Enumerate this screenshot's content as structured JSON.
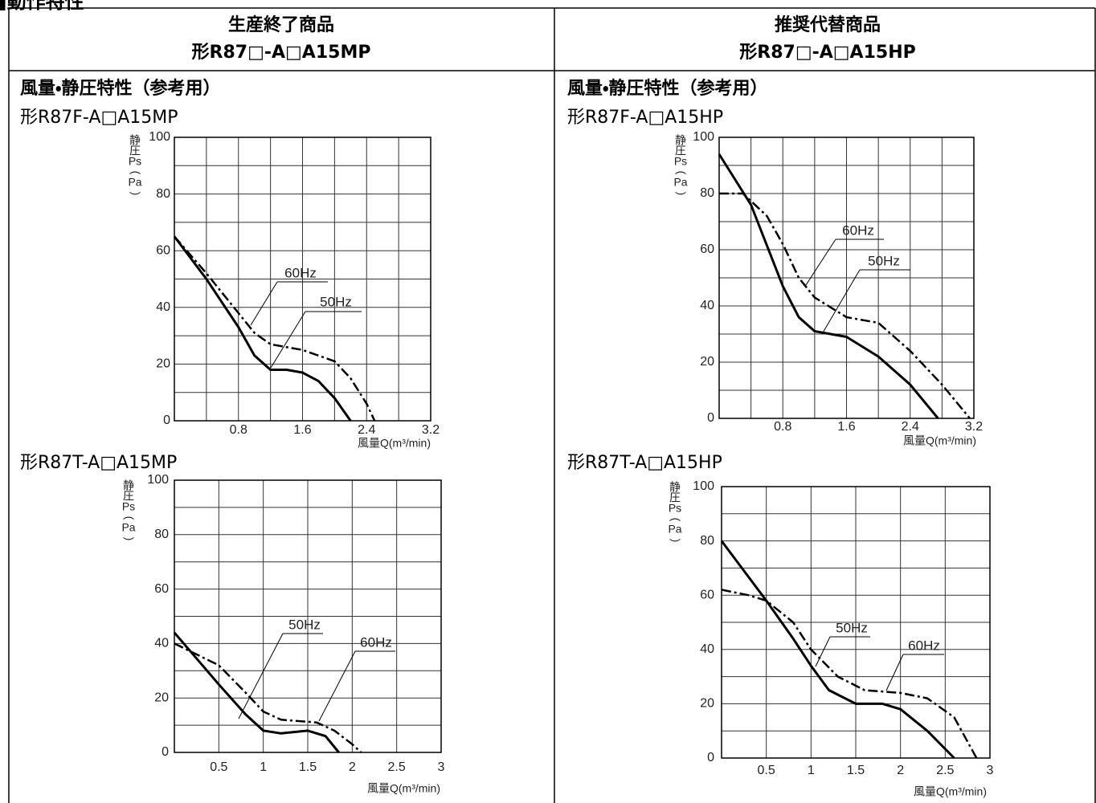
{
  "header": {
    "title": "■動作特性"
  },
  "table": {
    "columns": [
      {
        "status": "生産終了商品",
        "model": "形R87□-A□A15MP",
        "section_title": "風量・静圧特性（参考用）",
        "chart_titles": [
          "形R87F-A□A15MP",
          "形R87T-A□A15MP"
        ]
      },
      {
        "status": "推奨代替商品",
        "model": "形R87□-A□A15HP",
        "section_title": "風量・静圧特性（参考用）",
        "chart_titles": [
          "形R87F-A□A15HP",
          "形R87T-A□A15HP"
        ]
      }
    ]
  },
  "chart_data": [
    {
      "type": "line",
      "x_label": "風量Q(m³/min)",
      "y_label": [
        "静",
        "圧",
        "Ps",
        "(",
        "Pa",
        ")"
      ],
      "xlim": [
        0,
        3.2
      ],
      "ylim": [
        0,
        100
      ],
      "xticks": [
        0.8,
        1.6,
        2.4,
        3.2
      ],
      "yticks": [
        0,
        20,
        40,
        60,
        80,
        100
      ],
      "grid_x": [
        0.4,
        0.8,
        1.2,
        1.6,
        2.0,
        2.4,
        2.8
      ],
      "grid_y": [
        10,
        20,
        30,
        40,
        50,
        60,
        70,
        80,
        90
      ],
      "series": [
        {
          "name": "50Hz",
          "color": "#000000",
          "style": "solid",
          "x": [
            0,
            0.4,
            0.8,
            1.0,
            1.2,
            1.4,
            1.6,
            1.8,
            2.0,
            2.2
          ],
          "values": [
            65,
            50,
            33,
            23,
            18,
            18,
            17,
            14,
            8,
            0
          ]
        },
        {
          "name": "60Hz",
          "color": "#000000",
          "style": "dash-dot",
          "x": [
            0,
            0.4,
            0.8,
            1.0,
            1.2,
            1.6,
            2.0,
            2.2,
            2.4,
            2.5
          ],
          "values": [
            65,
            52,
            38,
            31,
            27,
            25,
            21,
            15,
            6,
            0
          ]
        }
      ]
    },
    {
      "type": "line",
      "x_label": "風量Q(m³/min)",
      "y_label": [
        "静",
        "圧",
        "Ps",
        "(",
        "Pa",
        ")"
      ],
      "xlim": [
        0,
        3.2
      ],
      "ylim": [
        0,
        100
      ],
      "xticks": [
        0.8,
        1.6,
        2.4,
        3.2
      ],
      "yticks": [
        0,
        20,
        40,
        60,
        80,
        100
      ],
      "grid_x": [
        0.4,
        0.8,
        1.2,
        1.6,
        2.0,
        2.4,
        2.8
      ],
      "grid_y": [
        10,
        20,
        30,
        40,
        50,
        60,
        70,
        80,
        90
      ],
      "series": [
        {
          "name": "50Hz",
          "color": "#000000",
          "style": "solid",
          "x": [
            0,
            0.4,
            0.8,
            1.0,
            1.2,
            1.6,
            2.0,
            2.4,
            2.75
          ],
          "values": [
            94,
            76,
            47,
            36,
            31,
            29,
            22,
            12,
            0
          ]
        },
        {
          "name": "60Hz",
          "color": "#000000",
          "style": "dash-dot",
          "x": [
            0,
            0.3,
            0.6,
            0.8,
            1.0,
            1.2,
            1.6,
            2.0,
            2.4,
            2.8,
            3.15
          ],
          "values": [
            80,
            80,
            72,
            62,
            50,
            43,
            36,
            34,
            24,
            12,
            0
          ]
        }
      ]
    },
    {
      "type": "line",
      "x_label": "風量Q(m³/min)",
      "y_label": [
        "静",
        "圧",
        "Ps",
        "(",
        "Pa",
        ")"
      ],
      "xlim": [
        0,
        3
      ],
      "ylim": [
        0,
        100
      ],
      "xticks": [
        0.5,
        1,
        1.5,
        2,
        2.5,
        3
      ],
      "yticks": [
        0,
        20,
        40,
        60,
        80,
        100
      ],
      "grid_x": [
        0.5,
        1,
        1.5,
        2,
        2.5
      ],
      "grid_y": [
        10,
        20,
        30,
        40,
        50,
        60,
        70,
        80,
        90
      ],
      "series": [
        {
          "name": "50Hz",
          "color": "#000000",
          "style": "solid",
          "x": [
            0,
            0.5,
            0.8,
            1.0,
            1.2,
            1.5,
            1.7,
            1.85
          ],
          "values": [
            44,
            25,
            14,
            8,
            7,
            8,
            6,
            0
          ]
        },
        {
          "name": "60Hz",
          "color": "#000000",
          "style": "dash-dot",
          "x": [
            0,
            0.5,
            0.8,
            1.0,
            1.2,
            1.6,
            1.8,
            2.0,
            2.1
          ],
          "values": [
            40,
            32,
            22,
            15,
            12,
            11,
            8,
            3,
            0
          ]
        }
      ]
    },
    {
      "type": "line",
      "x_label": "風量Q(m³/min)",
      "y_label": [
        "静",
        "圧",
        "Ps",
        "(",
        "Pa",
        ")"
      ],
      "xlim": [
        0,
        3
      ],
      "ylim": [
        0,
        100
      ],
      "xticks": [
        0.5,
        1,
        1.5,
        2,
        2.5,
        3
      ],
      "yticks": [
        0,
        20,
        40,
        60,
        80,
        100
      ],
      "grid_x": [
        0.5,
        1,
        1.5,
        2,
        2.5
      ],
      "grid_y": [
        10,
        20,
        30,
        40,
        50,
        60,
        70,
        80,
        90
      ],
      "series": [
        {
          "name": "50Hz",
          "color": "#000000",
          "style": "solid",
          "x": [
            0,
            0.5,
            0.8,
            1.0,
            1.2,
            1.5,
            1.8,
            2.0,
            2.3,
            2.6
          ],
          "values": [
            80,
            58,
            44,
            34,
            25,
            20,
            20,
            18,
            10,
            0
          ]
        },
        {
          "name": "60Hz",
          "color": "#000000",
          "style": "dash-dot",
          "x": [
            0,
            0.3,
            0.5,
            0.8,
            1.0,
            1.3,
            1.6,
            2.0,
            2.3,
            2.6,
            2.85
          ],
          "values": [
            62,
            60,
            58,
            50,
            40,
            30,
            25,
            24,
            22,
            15,
            0
          ]
        }
      ]
    }
  ]
}
